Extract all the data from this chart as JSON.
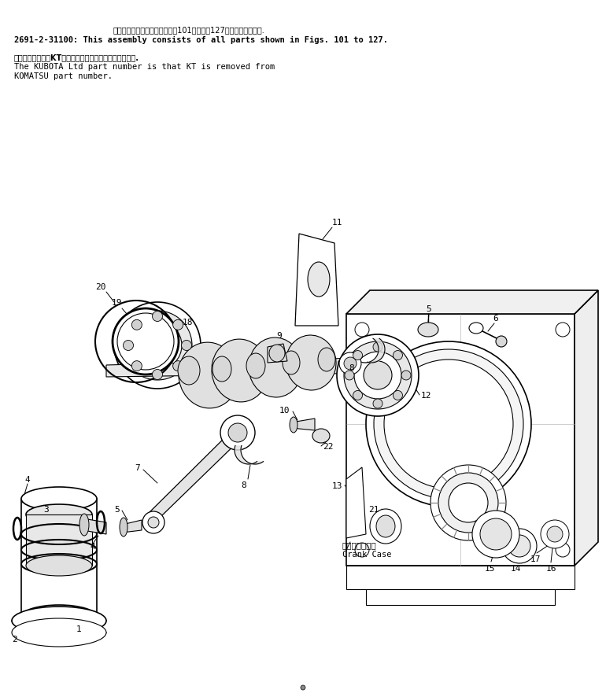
{
  "bg_color": "#ffffff",
  "figsize": [
    7.7,
    8.87
  ],
  "dpi": 100,
  "text_line1_jp": "このアセンブリの構成部品は第101図から第127図までまいります.",
  "text_line1_en": "2691-2-31100: This assembly consists of all parts shown in Figs. 101 to 127.",
  "text_line2_jp": "品番のメーカ記号KTを除いたものが久保田工の品番です.",
  "text_line2_en1": "The KUBOTA Ltd part number is that KT is removed from",
  "text_line2_en2": "KOMATSU part number.",
  "label_crankcase_jp": "クランクケース",
  "label_crankcase_en": "Crank Case",
  "lc": "black",
  "lw": 0.8,
  "lw_thick": 1.2,
  "label_fs": 8,
  "header_fs": 7.5,
  "header_fs_jp": 7.0
}
